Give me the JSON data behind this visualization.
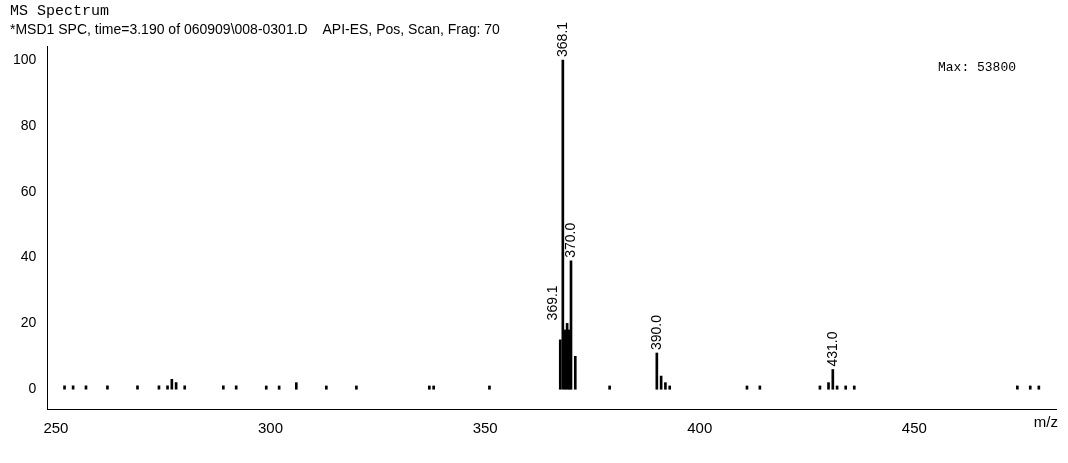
{
  "chart_data": {
    "type": "bar",
    "title": "MS Spectrum",
    "subtitle": "*MSD1 SPC, time=3.190 of 060909\\008-0301.D    API-ES, Pos, Scan, Frag: 70",
    "xlabel": "m/z",
    "x": [
      252,
      254,
      257,
      262,
      269,
      274,
      276,
      277,
      278,
      280,
      289,
      292,
      299,
      302,
      306,
      313,
      320,
      337,
      338,
      351,
      367.5,
      368.1,
      368.6,
      369.1,
      369.6,
      370.0,
      371.0,
      379,
      390.0,
      391,
      392,
      393,
      411,
      414,
      428,
      430,
      431.0,
      432,
      434,
      436,
      474,
      477,
      479
    ],
    "values": [
      1,
      1,
      1,
      1,
      1,
      1,
      1,
      3,
      2,
      1,
      1,
      1,
      1,
      1,
      2,
      1,
      1,
      1,
      1,
      1,
      15,
      100,
      18,
      20,
      18,
      39,
      10,
      1,
      11,
      4,
      2,
      1,
      1,
      1,
      1,
      2,
      6,
      1,
      1,
      1,
      1,
      1,
      1
    ],
    "color": "#000000",
    "xlim": [
      248,
      483
    ],
    "xticks": [
      250,
      300,
      350,
      400,
      450
    ],
    "ylim": [
      -6,
      104
    ],
    "yticks": [
      0,
      20,
      40,
      60,
      80,
      100
    ],
    "grid": false,
    "legend": false,
    "annotations": [
      {
        "text": "368.1",
        "x": 368.1,
        "y": 100
      },
      {
        "text": "369.1",
        "x": 369.1,
        "y": 20
      },
      {
        "text": "370.0",
        "x": 370.0,
        "y": 39
      },
      {
        "text": "390.0",
        "x": 390.0,
        "y": 11
      },
      {
        "text": "431.0",
        "x": 431.0,
        "y": 6
      },
      "Max: 53800"
    ]
  }
}
